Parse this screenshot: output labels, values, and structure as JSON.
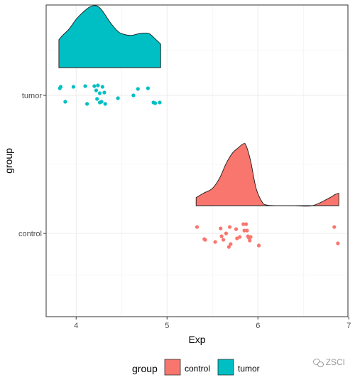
{
  "chart_data": {
    "type": "raincloud",
    "xlabel": "Exp",
    "ylabel": "group",
    "xlim": [
      3.67,
      6.99
    ],
    "x_ticks": [
      "4",
      "5",
      "6",
      "7"
    ],
    "categories": [
      "control",
      "tumor"
    ],
    "grid": true,
    "legend": {
      "title": "group",
      "position": "bottom",
      "entries": [
        "control",
        "tumor"
      ]
    },
    "colors": {
      "control": "#F8766D",
      "tumor": "#00BFC4"
    },
    "series": [
      {
        "name": "control",
        "color": "#F8766D",
        "points": [
          [
            5.33,
            0.09
          ],
          [
            5.41,
            -0.08
          ],
          [
            5.42,
            -0.09
          ],
          [
            5.53,
            -0.12
          ],
          [
            5.59,
            0.07
          ],
          [
            5.6,
            -0.04
          ],
          [
            5.62,
            -0.09
          ],
          [
            5.65,
            0.0
          ],
          [
            5.68,
            -0.19
          ],
          [
            5.69,
            0.09
          ],
          [
            5.7,
            -0.15
          ],
          [
            5.76,
            0.06
          ],
          [
            5.77,
            -0.07
          ],
          [
            5.8,
            -0.05
          ],
          [
            5.84,
            0.13
          ],
          [
            5.85,
            0.04
          ],
          [
            5.87,
            0.13
          ],
          [
            5.88,
            0.04
          ],
          [
            5.89,
            -0.04
          ],
          [
            5.9,
            -0.06
          ],
          [
            5.91,
            -0.1
          ],
          [
            5.92,
            -0.05
          ],
          [
            6.01,
            -0.17
          ],
          [
            6.84,
            0.09
          ],
          [
            6.88,
            -0.14
          ]
        ],
        "density": {
          "x": [
            5.32,
            5.4,
            5.5,
            5.58,
            5.65,
            5.72,
            5.78,
            5.84,
            5.87,
            5.92,
            5.98,
            6.05,
            6.1,
            6.2,
            6.4,
            6.6,
            6.78,
            6.85,
            6.89
          ],
          "y": [
            0.13,
            0.2,
            0.28,
            0.45,
            0.68,
            0.85,
            0.93,
            1.0,
            0.97,
            0.72,
            0.28,
            0.05,
            0.01,
            0.0,
            0.0,
            0.0,
            0.12,
            0.18,
            0.2
          ]
        }
      },
      {
        "name": "tumor",
        "color": "#00BFC4",
        "points": [
          [
            3.82,
            0.1
          ],
          [
            3.83,
            0.12
          ],
          [
            3.88,
            -0.09
          ],
          [
            3.97,
            0.12
          ],
          [
            4.1,
            0.13
          ],
          [
            4.12,
            -0.12
          ],
          [
            4.2,
            0.13
          ],
          [
            4.22,
            0.07
          ],
          [
            4.23,
            -0.05
          ],
          [
            4.24,
            0.14
          ],
          [
            4.26,
            0.03
          ],
          [
            4.26,
            -0.1
          ],
          [
            4.28,
            -0.09
          ],
          [
            4.29,
            0.12
          ],
          [
            4.31,
            0.04
          ],
          [
            4.32,
            -0.12
          ],
          [
            4.46,
            -0.04
          ],
          [
            4.63,
            0.0
          ],
          [
            4.68,
            0.09
          ],
          [
            4.79,
            0.1
          ],
          [
            4.85,
            -0.1
          ],
          [
            4.87,
            -0.11
          ],
          [
            4.92,
            -0.1
          ]
        ],
        "density": {
          "x": [
            3.81,
            3.85,
            3.92,
            4.0,
            4.08,
            4.15,
            4.22,
            4.27,
            4.32,
            4.38,
            4.45,
            4.5,
            4.6,
            4.7,
            4.8,
            4.88,
            4.93
          ],
          "y": [
            0.45,
            0.52,
            0.62,
            0.78,
            0.9,
            0.98,
            1.0,
            0.95,
            0.85,
            0.72,
            0.6,
            0.55,
            0.52,
            0.55,
            0.55,
            0.45,
            0.38
          ]
        }
      }
    ]
  }
}
